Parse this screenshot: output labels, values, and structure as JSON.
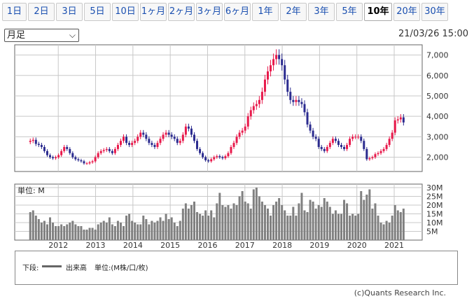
{
  "tabs": [
    {
      "label": "1日",
      "active": false
    },
    {
      "label": "2日",
      "active": false
    },
    {
      "label": "3日",
      "active": false
    },
    {
      "label": "5日",
      "active": false
    },
    {
      "label": "10日",
      "active": false
    },
    {
      "label": "1ヶ月",
      "active": false
    },
    {
      "label": "2ヶ月",
      "active": false
    },
    {
      "label": "3ヶ月",
      "active": false
    },
    {
      "label": "6ヶ月",
      "active": false
    },
    {
      "label": "1年",
      "active": false
    },
    {
      "label": "2年",
      "active": false
    },
    {
      "label": "3年",
      "active": false
    },
    {
      "label": "5年",
      "active": false
    },
    {
      "label": "10年",
      "active": true
    },
    {
      "label": "20年",
      "active": false
    },
    {
      "label": "30年",
      "active": false
    }
  ],
  "period_select": {
    "value": "月足"
  },
  "timestamp": "21/03/26 15:00",
  "volume_unit_label": "単位: M",
  "legend": {
    "prefix": "下段:",
    "series_name": "出来高",
    "unit": "単位:(M株/口/枚)"
  },
  "credit": "(c)Quants Research Inc.",
  "colors": {
    "up": "#e8194b",
    "down": "#2b2b8f",
    "volume": "#808080",
    "grid": "#c8c8c8",
    "frame": "#666666"
  },
  "chart_data": [
    {
      "type": "candlestick",
      "yticks": [
        "2,000",
        "3,000",
        "4,000",
        "5,000",
        "6,000",
        "7,000"
      ],
      "ytick_values": [
        2000,
        3000,
        4000,
        5000,
        6000,
        7000
      ],
      "ylim": [
        1300,
        7500
      ],
      "xticks": [
        "2012",
        "2013",
        "2014",
        "2015",
        "2016",
        "2017",
        "2018",
        "2019",
        "2020",
        "2021"
      ],
      "close": [
        2800,
        2850,
        2650,
        2600,
        2500,
        2300,
        2100,
        2000,
        1950,
        2000,
        2100,
        2300,
        2500,
        2400,
        2200,
        2000,
        1900,
        1850,
        1800,
        1700,
        1700,
        1750,
        1800,
        2000,
        2200,
        2300,
        2350,
        2400,
        2300,
        2200,
        2400,
        2600,
        2800,
        3000,
        2700,
        2600,
        2700,
        2800,
        3000,
        3200,
        3100,
        2900,
        2700,
        2600,
        2500,
        2700,
        2900,
        3100,
        3200,
        3100,
        3000,
        2900,
        2700,
        2800,
        3100,
        3500,
        3400,
        3100,
        2800,
        2400,
        2200,
        2000,
        1850,
        1800,
        1900,
        2000,
        2050,
        2000,
        1950,
        2050,
        2200,
        2500,
        2700,
        3000,
        3200,
        3300,
        3500,
        4000,
        4300,
        4500,
        4600,
        4800,
        5200,
        5800,
        6200,
        6500,
        6800,
        7000,
        6800,
        6500,
        5800,
        5200,
        4800,
        4700,
        4800,
        4700,
        4600,
        4200,
        3600,
        3300,
        3000,
        2900,
        2500,
        2400,
        2300,
        2500,
        2700,
        2900,
        2800,
        2600,
        2500,
        2400,
        2600,
        2900,
        3000,
        3000,
        3000,
        2800,
        2400,
        1900,
        1950,
        2000,
        2150,
        2200,
        2300,
        2400,
        2600,
        2900,
        3200,
        3800,
        3850,
        3950,
        3700
      ],
      "volume_yticks": [
        "5M",
        "10M",
        "15M",
        "20M",
        "25M",
        "30M"
      ],
      "volume_ytick_values": [
        5,
        10,
        15,
        20,
        25,
        30
      ],
      "volume_ylim": [
        0,
        32
      ],
      "volume": [
        16,
        17,
        14,
        12,
        10,
        11,
        9,
        13,
        10,
        8,
        8,
        9,
        8,
        9,
        10,
        11,
        9,
        8,
        8,
        6,
        6,
        7,
        7,
        6,
        9,
        10,
        11,
        10,
        13,
        9,
        8,
        11,
        10,
        8,
        14,
        15,
        11,
        10,
        9,
        9,
        14,
        12,
        9,
        11,
        10,
        11,
        13,
        11,
        15,
        12,
        13,
        10,
        8,
        11,
        18,
        21,
        18,
        20,
        22,
        16,
        15,
        14,
        17,
        14,
        17,
        13,
        21,
        27,
        20,
        19,
        20,
        18,
        21,
        20,
        25,
        28,
        22,
        21,
        18,
        29,
        30,
        25,
        22,
        20,
        18,
        14,
        20,
        22,
        24,
        20,
        17,
        14,
        14,
        19,
        14,
        21,
        27,
        17,
        16,
        23,
        22,
        18,
        20,
        19,
        24,
        22,
        19,
        15,
        17,
        15,
        15,
        23,
        21,
        14,
        15,
        14,
        15,
        28,
        23,
        26,
        29,
        18,
        21,
        14,
        10,
        9,
        11,
        10,
        14,
        20,
        17,
        16,
        18
      ]
    }
  ]
}
